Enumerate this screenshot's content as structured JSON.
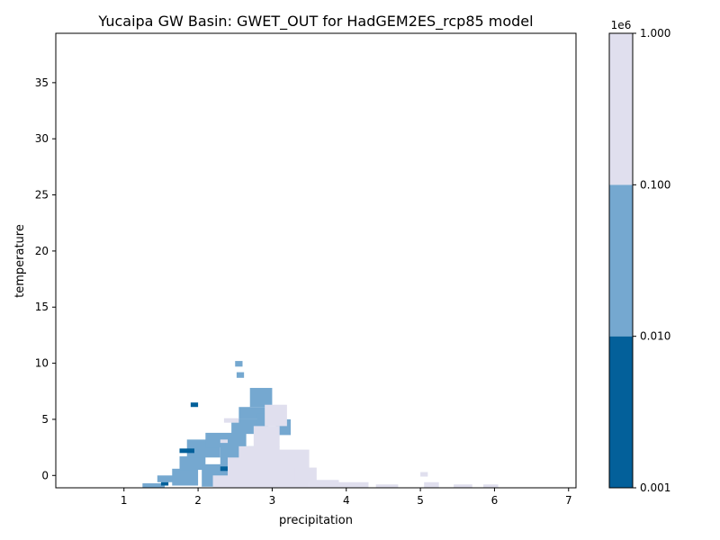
{
  "chart_data": {
    "type": "heatmap",
    "title": "Yucaipa GW Basin: GWET_OUT for HadGEM2ES_rcp85 model",
    "xlabel": "precipitation",
    "ylabel": "temperature",
    "xlim": [
      0.08,
      7.1
    ],
    "ylim": [
      -1.1,
      39.4
    ],
    "x_ticks": [
      1,
      2,
      3,
      4,
      5,
      6,
      7
    ],
    "y_ticks": [
      0,
      5,
      10,
      15,
      20,
      25,
      30,
      35
    ],
    "grid": false,
    "contour_levels": [
      1000,
      10000,
      100000,
      1000000
    ],
    "contour_colors": [
      "#03609a",
      "#75a8d0",
      "#e0dfee"
    ],
    "colorbar": {
      "scale": "log",
      "offset_label": "1e6",
      "tick_labels": [
        "0.001",
        "0.010",
        "0.100",
        "1.000"
      ],
      "tick_values": [
        0.001,
        0.01,
        0.1,
        1.0
      ]
    },
    "regions": [
      {
        "level": "mid",
        "x": [
          1.25,
          1.55
        ],
        "y": [
          -1.1,
          -0.7
        ]
      },
      {
        "level": "mid",
        "x": [
          1.45,
          1.7
        ],
        "y": [
          -0.6,
          0.0
        ]
      },
      {
        "level": "mid",
        "x": [
          1.65,
          2.0
        ],
        "y": [
          -0.9,
          0.6
        ]
      },
      {
        "level": "mid",
        "x": [
          1.75,
          2.1
        ],
        "y": [
          0.5,
          1.7
        ]
      },
      {
        "level": "mid",
        "x": [
          1.85,
          2.3
        ],
        "y": [
          1.6,
          3.2
        ]
      },
      {
        "level": "mid",
        "x": [
          2.05,
          2.5
        ],
        "y": [
          -1.0,
          1.0
        ]
      },
      {
        "level": "mid",
        "x": [
          2.1,
          2.65
        ],
        "y": [
          2.5,
          3.8
        ]
      },
      {
        "level": "mid",
        "x": [
          2.3,
          2.8
        ],
        "y": [
          0.8,
          2.6
        ]
      },
      {
        "level": "mid",
        "x": [
          2.45,
          2.95
        ],
        "y": [
          3.7,
          5.0
        ]
      },
      {
        "level": "mid",
        "x": [
          2.55,
          2.95
        ],
        "y": [
          5.0,
          6.1
        ]
      },
      {
        "level": "mid",
        "x": [
          2.7,
          3.0
        ],
        "y": [
          6.1,
          7.8
        ]
      },
      {
        "level": "mid",
        "x": [
          2.5,
          2.6
        ],
        "y": [
          9.7,
          10.2
        ]
      },
      {
        "level": "mid",
        "x": [
          2.52,
          2.62
        ],
        "y": [
          8.7,
          9.2
        ]
      },
      {
        "level": "mid",
        "x": [
          2.8,
          3.0
        ],
        "y": [
          4.5,
          5.5
        ]
      },
      {
        "level": "mid",
        "x": [
          3.05,
          3.25
        ],
        "y": [
          3.6,
          5.0
        ]
      },
      {
        "level": "low",
        "x": [
          1.9,
          2.0
        ],
        "y": [
          6.1,
          6.5
        ]
      },
      {
        "level": "low",
        "x": [
          1.75,
          1.95
        ],
        "y": [
          2.0,
          2.4
        ]
      },
      {
        "level": "low",
        "x": [
          2.3,
          2.4
        ],
        "y": [
          0.4,
          0.8
        ]
      },
      {
        "level": "low",
        "x": [
          1.5,
          1.6
        ],
        "y": [
          -0.9,
          -0.6
        ]
      },
      {
        "level": "high",
        "x": [
          2.2,
          2.6
        ],
        "y": [
          -1.1,
          0.0
        ]
      },
      {
        "level": "high",
        "x": [
          2.4,
          2.8
        ],
        "y": [
          -0.2,
          1.6
        ]
      },
      {
        "level": "high",
        "x": [
          2.55,
          3.1
        ],
        "y": [
          -1.1,
          2.6
        ]
      },
      {
        "level": "high",
        "x": [
          2.75,
          3.1
        ],
        "y": [
          2.5,
          4.4
        ]
      },
      {
        "level": "high",
        "x": [
          2.9,
          3.2
        ],
        "y": [
          4.4,
          6.3
        ]
      },
      {
        "level": "high",
        "x": [
          3.0,
          3.5
        ],
        "y": [
          -1.1,
          2.3
        ]
      },
      {
        "level": "high",
        "x": [
          3.3,
          3.6
        ],
        "y": [
          -0.6,
          0.7
        ]
      },
      {
        "level": "high",
        "x": [
          3.5,
          3.9
        ],
        "y": [
          -1.1,
          -0.4
        ]
      },
      {
        "level": "high",
        "x": [
          3.9,
          4.3
        ],
        "y": [
          -1.1,
          -0.6
        ]
      },
      {
        "level": "high",
        "x": [
          4.4,
          4.7
        ],
        "y": [
          -1.1,
          -0.8
        ]
      },
      {
        "level": "high",
        "x": [
          5.05,
          5.25
        ],
        "y": [
          -1.1,
          -0.6
        ]
      },
      {
        "level": "high",
        "x": [
          5.0,
          5.1
        ],
        "y": [
          -0.1,
          0.3
        ]
      },
      {
        "level": "high",
        "x": [
          5.45,
          5.7
        ],
        "y": [
          -1.1,
          -0.8
        ]
      },
      {
        "level": "high",
        "x": [
          5.85,
          6.05
        ],
        "y": [
          -1.1,
          -0.8
        ]
      },
      {
        "level": "high",
        "x": [
          2.35,
          2.55
        ],
        "y": [
          4.7,
          5.1
        ]
      },
      {
        "level": "high",
        "x": [
          2.3,
          2.4
        ],
        "y": [
          2.9,
          3.2
        ]
      }
    ]
  }
}
